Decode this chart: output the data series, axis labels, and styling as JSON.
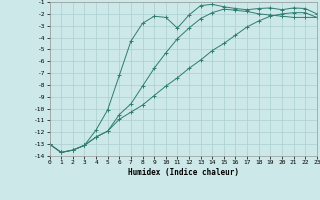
{
  "xlabel": "Humidex (Indice chaleur)",
  "ylabel": "",
  "bg_color": "#cce8e8",
  "line_color": "#2e7d6e",
  "grid_color": "#aacfcf",
  "xlim": [
    0,
    23
  ],
  "ylim": [
    -14,
    -1
  ],
  "xticks": [
    0,
    1,
    2,
    3,
    4,
    5,
    6,
    7,
    8,
    9,
    10,
    11,
    12,
    13,
    14,
    15,
    16,
    17,
    18,
    19,
    20,
    21,
    22,
    23
  ],
  "yticks": [
    -14,
    -13,
    -12,
    -11,
    -10,
    -9,
    -8,
    -7,
    -6,
    -5,
    -4,
    -3,
    -2,
    -1
  ],
  "line1_x": [
    0,
    1,
    2,
    3,
    4,
    5,
    6,
    7,
    8,
    9,
    10,
    11,
    12,
    13,
    14,
    15,
    16,
    17,
    18,
    19,
    20,
    21,
    22,
    23
  ],
  "line1_y": [
    -13.0,
    -13.7,
    -13.5,
    -13.1,
    -11.8,
    -10.1,
    -7.2,
    -4.3,
    -2.8,
    -2.2,
    -2.3,
    -3.2,
    -2.1,
    -1.3,
    -1.2,
    -1.4,
    -1.55,
    -1.65,
    -1.55,
    -1.5,
    -1.65,
    -1.5,
    -1.55,
    -2.0
  ],
  "line2_x": [
    0,
    1,
    2,
    3,
    4,
    5,
    6,
    7,
    8,
    9,
    10,
    11,
    12,
    13,
    14,
    15,
    16,
    17,
    18,
    19,
    20,
    21,
    22,
    23
  ],
  "line2_y": [
    -13.0,
    -13.7,
    -13.5,
    -13.1,
    -12.4,
    -11.9,
    -10.5,
    -9.6,
    -8.1,
    -6.6,
    -5.3,
    -4.1,
    -3.2,
    -2.4,
    -1.9,
    -1.6,
    -1.7,
    -1.8,
    -2.0,
    -2.1,
    -2.2,
    -2.3,
    -2.3,
    -2.3
  ],
  "line3_x": [
    0,
    1,
    2,
    3,
    4,
    5,
    6,
    7,
    8,
    9,
    10,
    11,
    12,
    13,
    14,
    15,
    16,
    17,
    18,
    19,
    20,
    21,
    22,
    23
  ],
  "line3_y": [
    -13.0,
    -13.7,
    -13.5,
    -13.1,
    -12.4,
    -11.9,
    -10.9,
    -10.3,
    -9.7,
    -8.9,
    -8.1,
    -7.4,
    -6.6,
    -5.9,
    -5.1,
    -4.5,
    -3.8,
    -3.1,
    -2.6,
    -2.2,
    -2.0,
    -1.9,
    -1.9,
    -2.3
  ]
}
